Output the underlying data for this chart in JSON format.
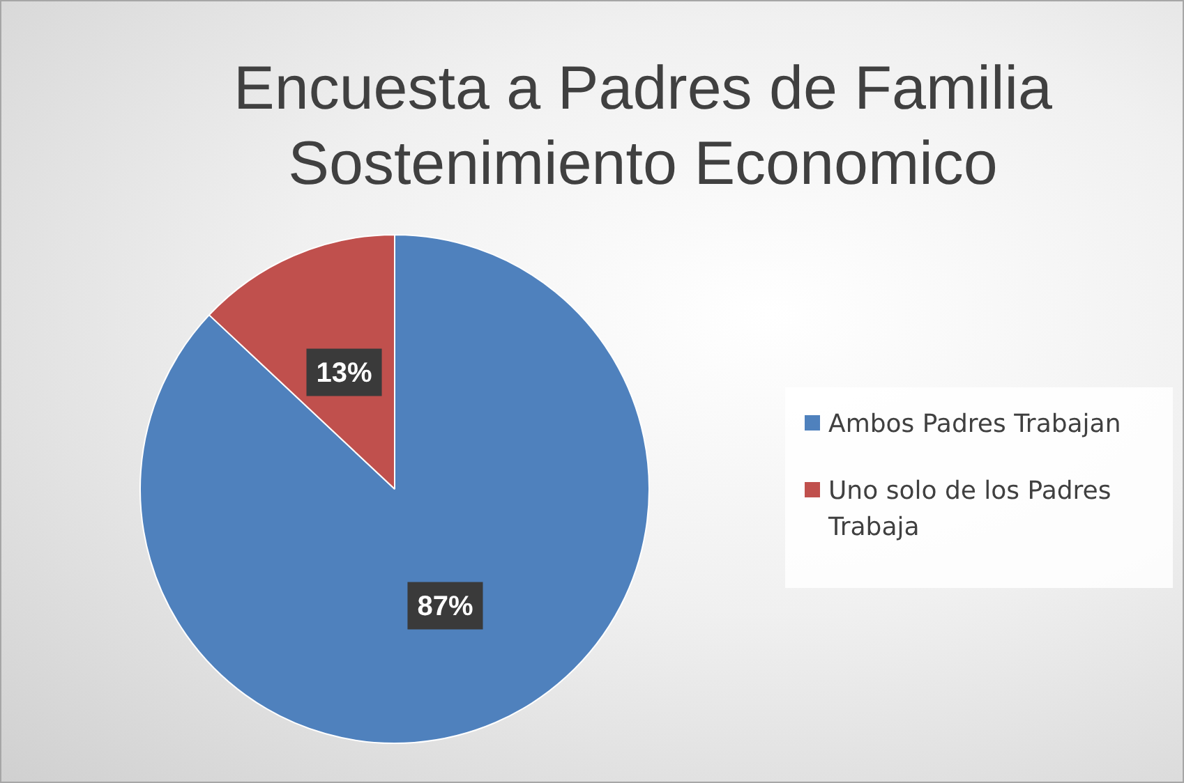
{
  "chart_data": {
    "type": "pie",
    "title": "Encuesta a Padres de Familia Sostenimiento Economico",
    "categories": [
      "Ambos Padres Trabajan",
      "Uno solo de los Padres Trabaja"
    ],
    "values": [
      87,
      13
    ],
    "value_labels": [
      "87%",
      "13%"
    ],
    "colors": [
      "#4f81bd",
      "#c0504d"
    ],
    "legend": "right"
  }
}
